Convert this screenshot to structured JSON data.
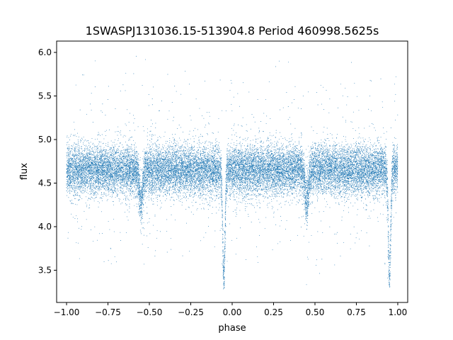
{
  "chart_data": {
    "type": "scatter",
    "title": "1SWASPJ131036.15-513904.8 Period 460998.5625s",
    "xlabel": "phase",
    "ylabel": "flux",
    "xlim": [
      -1.06,
      1.06
    ],
    "ylim": [
      3.13,
      6.13
    ],
    "x_ticks": [
      -1.0,
      -0.75,
      -0.5,
      -0.25,
      0.0,
      0.25,
      0.5,
      0.75,
      1.0
    ],
    "x_tick_labels": [
      "−1.00",
      "−0.75",
      "−0.50",
      "−0.25",
      "0.00",
      "0.25",
      "0.50",
      "0.75",
      "1.00"
    ],
    "y_ticks": [
      3.5,
      4.0,
      4.5,
      5.0,
      5.5,
      6.0
    ],
    "y_tick_labels": [
      "3.5",
      "4.0",
      "4.5",
      "5.0",
      "5.5",
      "6.0"
    ],
    "grid": false,
    "marker_color": "#1f77b4",
    "series": [
      {
        "phase_range": [
          -1.0,
          1.0
        ],
        "baseline_flux": 4.65,
        "typical_spread": [
          4.3,
          5.0
        ],
        "outlier_range": [
          3.28,
          6.0
        ],
        "primary_eclipse": {
          "phase": [
            -0.05,
            0.95
          ],
          "min_flux": 3.28
        },
        "secondary_eclipse": {
          "phase": [
            -0.55,
            0.45
          ],
          "min_flux": 4.13
        }
      }
    ]
  }
}
